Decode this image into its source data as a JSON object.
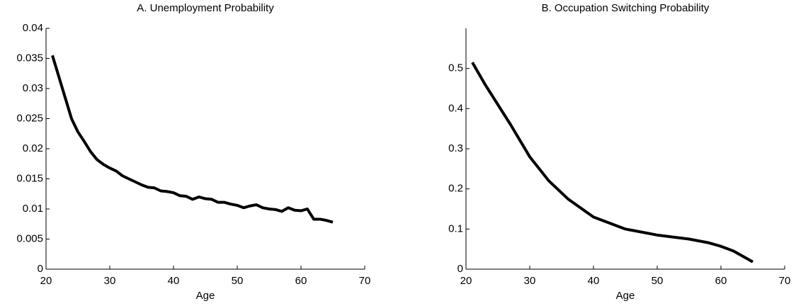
{
  "chart_data": [
    {
      "type": "line",
      "title": "A. Unemployment Probability",
      "x_label": "Age",
      "x": [
        21,
        22,
        23,
        24,
        25,
        26,
        27,
        28,
        29,
        30,
        31,
        32,
        33,
        34,
        35,
        36,
        37,
        38,
        39,
        40,
        41,
        42,
        43,
        44,
        45,
        46,
        47,
        48,
        49,
        50,
        51,
        52,
        53,
        54,
        55,
        56,
        57,
        58,
        59,
        60,
        61,
        62,
        63,
        64,
        65
      ],
      "values": [
        0.0355,
        0.032,
        0.0285,
        0.025,
        0.0228,
        0.0212,
        0.0195,
        0.0182,
        0.0174,
        0.0168,
        0.0163,
        0.0155,
        0.015,
        0.0145,
        0.014,
        0.0136,
        0.0135,
        0.013,
        0.0129,
        0.0127,
        0.0122,
        0.0121,
        0.0116,
        0.012,
        0.0117,
        0.0116,
        0.0111,
        0.0111,
        0.0108,
        0.0106,
        0.0102,
        0.0105,
        0.0107,
        0.0102,
        0.01,
        0.0099,
        0.0096,
        0.0102,
        0.0098,
        0.0097,
        0.01,
        0.0083,
        0.0083,
        0.0081,
        0.0078
      ],
      "color": "#000000",
      "xlim": [
        20,
        70
      ],
      "xticks": [
        20,
        30,
        40,
        50,
        60,
        70
      ],
      "ylim": [
        0,
        0.04
      ],
      "yticks": [
        0,
        0.005,
        0.01,
        0.015,
        0.02,
        0.025,
        0.03,
        0.035,
        0.04
      ]
    },
    {
      "type": "line",
      "title": "B. Occupation Switching Probability",
      "x_label": "Age",
      "x": [
        21,
        23,
        25,
        27,
        30,
        33,
        36,
        40,
        45,
        50,
        55,
        58,
        60,
        62,
        65
      ],
      "values": [
        0.515,
        0.46,
        0.41,
        0.36,
        0.28,
        0.22,
        0.175,
        0.13,
        0.1,
        0.085,
        0.075,
        0.066,
        0.057,
        0.045,
        0.018
      ],
      "color": "#000000",
      "xlim": [
        20,
        70
      ],
      "xticks": [
        20,
        30,
        40,
        50,
        60,
        70
      ],
      "ylim": [
        0,
        0.6
      ],
      "yticks": [
        0,
        0.1,
        0.2,
        0.3,
        0.4,
        0.5
      ]
    }
  ]
}
